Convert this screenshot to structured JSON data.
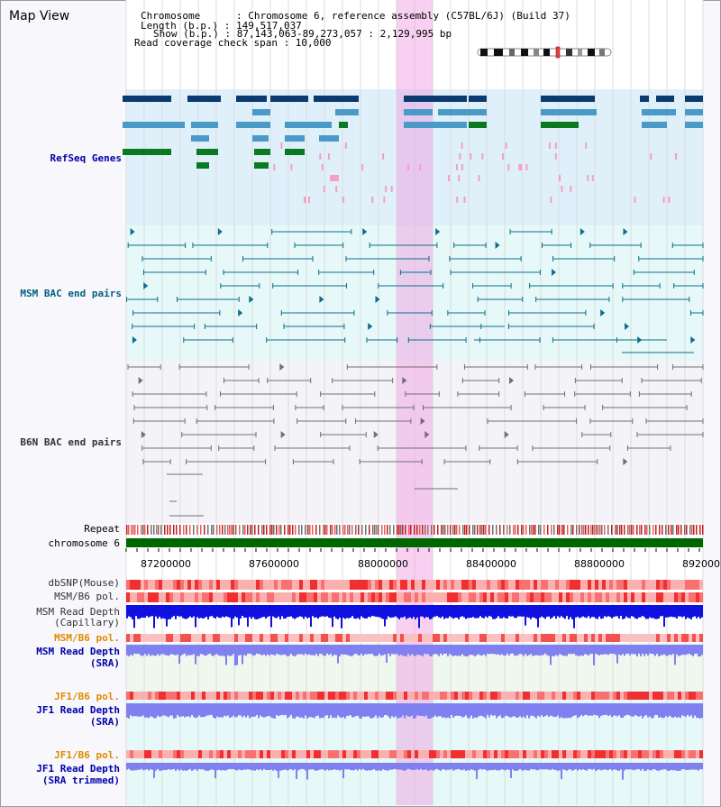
{
  "window": {
    "title": "Map View"
  },
  "header": {
    "chromosome": "Chromosome      : Chromosome 6, reference assembly (C57BL/6J) (Build 37)",
    "length": "Length (b.p.) : 149,517,037",
    "show": "Show (b.p.) : 87,143,063-89,273,057 : 2,129,995 bp",
    "read_span": "Read coverage check span : 10,000"
  },
  "tracks": {
    "refseq": "RefSeq Genes",
    "msm_bac": "MSM BAC end pairs",
    "b6n_bac": "B6N BAC end pairs",
    "repeat": "Repeat",
    "chromosome": "chromosome 6",
    "dbsnp": "dbSNP(Mouse)",
    "msm_b6_pol": "MSM/B6 pol.",
    "msm_depth_cap_1": "MSM Read Depth",
    "msm_depth_cap_2": "(Capillary)",
    "msm_b6_pol2": "MSM/B6 pol.",
    "msm_depth_sra_1": "MSM Read Depth",
    "msm_depth_sra_2": "(SRA)",
    "jf1_b6_pol": "JF1/B6 pol.",
    "jf1_depth_sra_1": "JF1 Read Depth",
    "jf1_depth_sra_2": "(SRA)",
    "jf1_b6_pol2": "JF1/B6 pol.",
    "jf1_depth_trim_1": "JF1 Read Depth",
    "jf1_depth_trim_2": "(SRA trimmed)"
  },
  "axis": {
    "ticks": [
      "87200000",
      "87600000",
      "88000000",
      "88400000",
      "88800000",
      "892000"
    ]
  },
  "colors": {
    "refseq_bg": "#dff0fa",
    "msm_bg": "#e6f8f8",
    "b6n_bg": "#f4f4f8",
    "highlight": "#f5c6ee",
    "label_blue": "#0000aa",
    "label_teal": "#006080",
    "label_orange": "#e08a00",
    "chromosome_bar": "#006600",
    "depth_dark": "#1010e0",
    "depth_light": "#8080f0"
  }
}
